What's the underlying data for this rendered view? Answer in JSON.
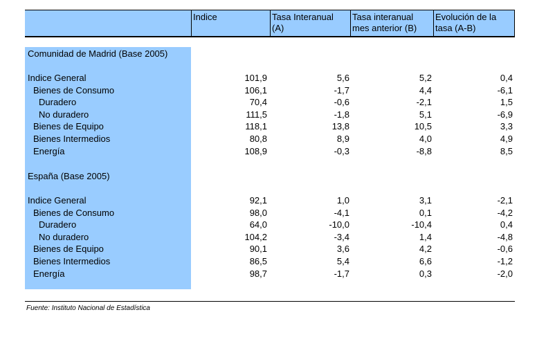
{
  "header": {
    "col_indice": "Indice",
    "col_a_line1": "Tasa Interanual",
    "col_a_line2": "(A)",
    "col_b_line1": "Tasa interanual",
    "col_b_line2": "mes anterior (B)",
    "col_ab_line1": "Evolución de la",
    "col_ab_line2": "tasa (A-B)"
  },
  "madrid": {
    "title": "Comunidad de Madrid (Base 2005)",
    "rows": [
      {
        "label": "Indice General",
        "indice": "101,9",
        "a": "5,6",
        "b": "5,2",
        "ab": "0,4"
      },
      {
        "label": "Bienes de Consumo",
        "indice": "106,1",
        "a": "-1,7",
        "b": "4,4",
        "ab": "-6,1"
      },
      {
        "label": "Duradero",
        "indice": "70,4",
        "a": "-0,6",
        "b": "-2,1",
        "ab": "1,5"
      },
      {
        "label": "No duradero",
        "indice": "111,5",
        "a": "-1,8",
        "b": "5,1",
        "ab": "-6,9"
      },
      {
        "label": "Bienes de Equipo",
        "indice": "118,1",
        "a": "13,8",
        "b": "10,5",
        "ab": "3,3"
      },
      {
        "label": "Bienes Intermedios",
        "indice": "80,8",
        "a": "8,9",
        "b": "4,0",
        "ab": "4,9"
      },
      {
        "label": "Energía",
        "indice": "108,9",
        "a": "-0,3",
        "b": "-8,8",
        "ab": "8,5"
      }
    ]
  },
  "espana": {
    "title": "España (Base 2005)",
    "rows": [
      {
        "label": "Indice General",
        "indice": "92,1",
        "a": "1,0",
        "b": "3,1",
        "ab": "-2,1"
      },
      {
        "label": "Bienes de Consumo",
        "indice": "98,0",
        "a": "-4,1",
        "b": "0,1",
        "ab": "-4,2"
      },
      {
        "label": "Duradero",
        "indice": "64,0",
        "a": "-10,0",
        "b": "-10,4",
        "ab": "0,4"
      },
      {
        "label": "No duradero",
        "indice": "104,2",
        "a": "-3,4",
        "b": "1,4",
        "ab": "-4,8"
      },
      {
        "label": "Bienes de Equipo",
        "indice": "90,1",
        "a": "3,6",
        "b": "4,2",
        "ab": "-0,6"
      },
      {
        "label": "Bienes Intermedios",
        "indice": "86,5",
        "a": "5,4",
        "b": "6,6",
        "ab": "-1,2"
      },
      {
        "label": "Energía",
        "indice": "98,7",
        "a": "-1,7",
        "b": "0,3",
        "ab": "-2,0"
      }
    ]
  },
  "footnote": "Fuente: Instituto Nacional de Estadística",
  "colors": {
    "header_fill": "#99ccff",
    "stub_fill": "#99ccff"
  }
}
